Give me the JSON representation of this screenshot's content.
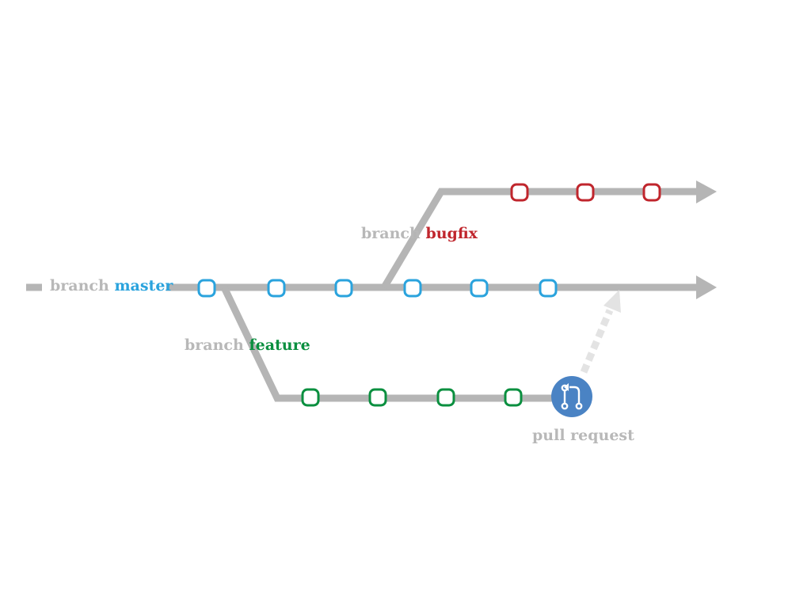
{
  "colors": {
    "line": "#b5b5b5",
    "arrow_dashed": "#e3e3e3",
    "master": "#2aa3dd",
    "bugfix": "#c0262d",
    "feature": "#0a8f3f",
    "pull_request_bg": "#4a83c4",
    "label_gray": "#b8b8b8"
  },
  "labels": {
    "master": {
      "prefix": "branch",
      "name": "master"
    },
    "bugfix": {
      "prefix": "branch",
      "name": "bugfix"
    },
    "feature": {
      "prefix": "branch",
      "name": "feature"
    },
    "pull_request": "pull request"
  },
  "icons": {
    "pull_request": "git-pull-request-icon"
  },
  "commits": {
    "master": 6,
    "bugfix": 3,
    "feature": 4
  }
}
